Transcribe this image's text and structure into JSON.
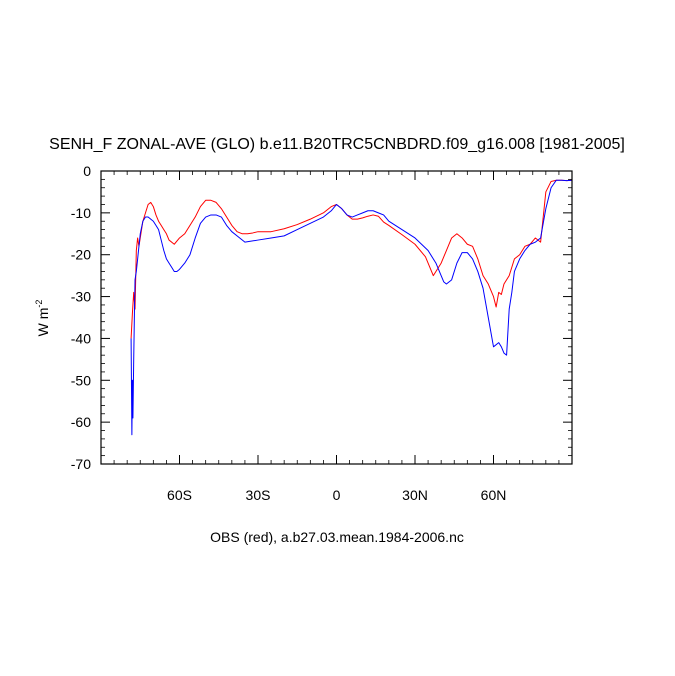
{
  "chart_data": {
    "type": "line",
    "title": "SENH_F ZONAL-AVE (GLO) b.e11.B20TRC5CNBDRD.f09_g16.008 [1981-2005]",
    "ylabel": "W m",
    "ylabel_superscript": "-2",
    "xlabel": "OBS (red), a.b27.03.mean.1984-2006.nc",
    "xlim": [
      -90,
      90
    ],
    "ylim": [
      -70,
      0
    ],
    "x_ticks": [
      {
        "value": -60,
        "label": "60S"
      },
      {
        "value": -30,
        "label": "30S"
      },
      {
        "value": 0,
        "label": "0"
      },
      {
        "value": 30,
        "label": "30N"
      },
      {
        "value": 60,
        "label": "60N"
      }
    ],
    "y_ticks": [
      {
        "value": 0,
        "label": "0"
      },
      {
        "value": -10,
        "label": "-10"
      },
      {
        "value": -20,
        "label": "-20"
      },
      {
        "value": -30,
        "label": "-30"
      },
      {
        "value": -40,
        "label": "-40"
      },
      {
        "value": -50,
        "label": "-50"
      },
      {
        "value": -60,
        "label": "-60"
      },
      {
        "value": -70,
        "label": "-70"
      }
    ],
    "grid": false,
    "series": [
      {
        "color": "#ff0000",
        "x": [
          -78.5,
          -78,
          -77.5,
          -77,
          -76.5,
          -76,
          -75.5,
          -75,
          -74,
          -73,
          -72,
          -71,
          -70,
          -69,
          -68,
          -67,
          -66,
          -65,
          -64,
          -62,
          -60,
          -58,
          -56,
          -54,
          -52,
          -50,
          -48,
          -46,
          -44,
          -42,
          -40,
          -38,
          -36,
          -34,
          -32,
          -30,
          -25,
          -20,
          -15,
          -10,
          -5,
          -2,
          0,
          2,
          4,
          6,
          8,
          10,
          12,
          14,
          16,
          18,
          20,
          25,
          30,
          34,
          37,
          40,
          42,
          44,
          46,
          48,
          50,
          52,
          54,
          56,
          58,
          60,
          61,
          62,
          63,
          64,
          66,
          68,
          70,
          72,
          74,
          76,
          78,
          80,
          82,
          84,
          86,
          88,
          90
        ],
        "y": [
          -40,
          -34,
          -29,
          -33,
          -19,
          -16,
          -18,
          -16,
          -12,
          -10,
          -8,
          -7.5,
          -8.5,
          -10.5,
          -12,
          -13,
          -14,
          -15,
          -16.5,
          -17.5,
          -16,
          -15,
          -13,
          -11,
          -8.5,
          -7,
          -7,
          -7.5,
          -9,
          -11,
          -13,
          -14.5,
          -15,
          -15,
          -14.8,
          -14.5,
          -14.5,
          -13.8,
          -12.8,
          -11.5,
          -10,
          -8.5,
          -8,
          -9,
          -10.5,
          -11.5,
          -11.5,
          -11.2,
          -10.8,
          -10.5,
          -10.8,
          -12.2,
          -13,
          -15.2,
          -17.5,
          -20.5,
          -25,
          -22,
          -19,
          -16,
          -15,
          -16,
          -17.5,
          -18,
          -21,
          -25,
          -27,
          -30,
          -32.5,
          -29,
          -29.5,
          -27,
          -25,
          -21,
          -20,
          -18,
          -17.5,
          -16,
          -17,
          -5,
          -2.5,
          -2.2,
          -2.2,
          -2.3,
          -2.2
        ]
      },
      {
        "color": "#0000ff",
        "x": [
          -78.5,
          -78.2,
          -78,
          -77.8,
          -77.5,
          -77.2,
          -77,
          -76.5,
          -76,
          -75.5,
          -75,
          -74,
          -73,
          -72,
          -71,
          -70,
          -69,
          -68,
          -67,
          -66,
          -65,
          -64,
          -63,
          -62,
          -61,
          -60,
          -58,
          -56,
          -54,
          -52,
          -50,
          -48,
          -46,
          -44,
          -42,
          -40,
          -38,
          -35,
          -30,
          -25,
          -20,
          -15,
          -10,
          -5,
          -2,
          0,
          2,
          4,
          6,
          8,
          10,
          12,
          14,
          16,
          18,
          20,
          25,
          30,
          35,
          38,
          40,
          41,
          42,
          44,
          46,
          48,
          50,
          52,
          54,
          56,
          58,
          60,
          62,
          63,
          64,
          65,
          66,
          67,
          68,
          70,
          72,
          74,
          76,
          78,
          80,
          82,
          84,
          86,
          88,
          90
        ],
        "y": [
          -40,
          -63,
          -50,
          -59,
          -45,
          -33,
          -26,
          -24,
          -21,
          -18,
          -15,
          -12,
          -11,
          -11,
          -11.5,
          -12,
          -13,
          -14,
          -16.5,
          -19,
          -21,
          -22,
          -23,
          -24,
          -24,
          -23.5,
          -22,
          -20,
          -16,
          -12.5,
          -11,
          -10.5,
          -10.5,
          -11,
          -13,
          -14.5,
          -15.5,
          -17,
          -16.5,
          -16,
          -15.5,
          -14,
          -12.5,
          -11,
          -9.5,
          -8,
          -9,
          -10.5,
          -11,
          -10.5,
          -10,
          -9.5,
          -9.5,
          -10,
          -10.5,
          -12,
          -14,
          -16,
          -19,
          -22,
          -25,
          -26.5,
          -27,
          -26,
          -22,
          -19.5,
          -19.5,
          -21,
          -24,
          -28,
          -35,
          -42,
          -41,
          -42,
          -43.5,
          -44,
          -33,
          -29,
          -24,
          -21,
          -19,
          -17.5,
          -17,
          -16,
          -9,
          -4,
          -2.2,
          -2.2,
          -2.3,
          -2.2
        ]
      }
    ]
  }
}
